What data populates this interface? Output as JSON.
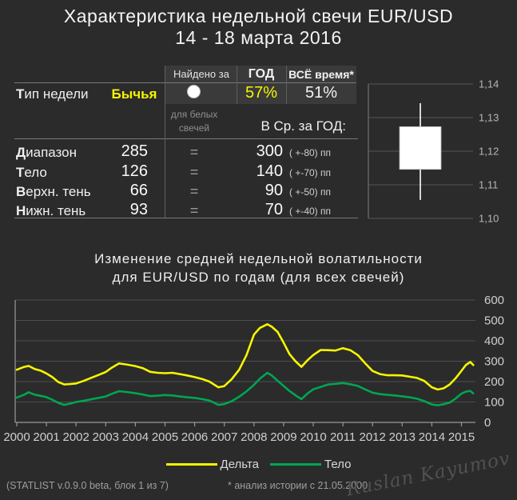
{
  "header": {
    "title_line1": "Характеристика недельной свечи EUR/USD",
    "title_line2": "14 - 18 марта 2016"
  },
  "stats_table": {
    "col_headers": {
      "found_for": "Найдено за",
      "year": "ГОД",
      "all_time": "ВСЁ время*"
    },
    "week_type": {
      "label_initial": "Т",
      "label_rest": "ип недели",
      "value": "Бычья",
      "year_pct": "57%",
      "all_time_pct": "51%"
    },
    "note": {
      "line1": "для белых",
      "line2": "свечей"
    },
    "avg_header": "В Ср. за ГОД:",
    "eq": "=",
    "rows": [
      {
        "label_initial": "Д",
        "label_rest": "иапазон",
        "value": "285",
        "avg": "300",
        "tolerance": "( +-80) пп"
      },
      {
        "label_initial": "Т",
        "label_rest": "ело",
        "value": "126",
        "avg": "140",
        "tolerance": "( +-70) пп"
      },
      {
        "label_initial": "В",
        "label_rest": "ерхн. тень",
        "value": "66",
        "avg": "90",
        "tolerance": "( +-50) пп"
      },
      {
        "label_initial": "Н",
        "label_rest": "ижн. тень",
        "value": "93",
        "avg": "70",
        "tolerance": "( +-40) пп"
      }
    ]
  },
  "colors": {
    "background": "#2b2b2b",
    "yellow": "#f7f500",
    "green": "#00a651",
    "gridline": "#4d4d4d",
    "axis": "#999999",
    "candle_fill": "#ffffff"
  },
  "chart_data": [
    {
      "type": "candlestick",
      "description": "weekly EUR/USD candle 14-18 March 2016",
      "y_ticks": [
        "1,14",
        "1,13",
        "1,12",
        "1,11",
        "1,10"
      ],
      "y_range": [
        1.1,
        1.14
      ],
      "grid": true,
      "candle": {
        "open": 1.1146,
        "close": 1.1273,
        "high": 1.1343,
        "low": 1.1055,
        "direction": "bullish"
      }
    },
    {
      "type": "line",
      "title_line1": "Изменение средней недельной волатильности",
      "title_line2": "для EUR/USD по годам (для всех свечей)",
      "x_ticks": [
        2000,
        2001,
        2002,
        2003,
        2004,
        2005,
        2006,
        2007,
        2008,
        2009,
        2010,
        2011,
        2012,
        2013,
        2014,
        2015
      ],
      "y_ticks": [
        0,
        100,
        200,
        300,
        400,
        500,
        600
      ],
      "ylim": [
        0,
        600
      ],
      "grid": true,
      "legend_position": "bottom",
      "x": [
        2000,
        2000.25,
        2000.4,
        2000.6,
        2000.8,
        2001,
        2001.2,
        2001.4,
        2001.6,
        2001.8,
        2002,
        2002.25,
        2002.5,
        2002.75,
        2003,
        2003.2,
        2003.45,
        2003.7,
        2004,
        2004.25,
        2004.5,
        2004.75,
        2005,
        2005.25,
        2005.5,
        2005.75,
        2006,
        2006.25,
        2006.5,
        2006.8,
        2007,
        2007.25,
        2007.5,
        2007.75,
        2008,
        2008.2,
        2008.45,
        2008.6,
        2008.8,
        2009,
        2009.2,
        2009.4,
        2009.6,
        2009.8,
        2010,
        2010.25,
        2010.5,
        2010.75,
        2011,
        2011.25,
        2011.5,
        2011.75,
        2012,
        2012.25,
        2012.5,
        2012.75,
        2013,
        2013.25,
        2013.5,
        2013.75,
        2014,
        2014.2,
        2014.4,
        2014.6,
        2014.8,
        2015,
        2015.15,
        2015.3,
        2015.4
      ],
      "series": [
        {
          "name": "Дельта",
          "color": "#f7f500",
          "values": [
            258,
            272,
            277,
            262,
            254,
            240,
            222,
            198,
            186,
            188,
            191,
            203,
            218,
            232,
            247,
            268,
            289,
            284,
            276,
            266,
            248,
            243,
            241,
            243,
            237,
            230,
            222,
            213,
            200,
            172,
            178,
            212,
            258,
            330,
            430,
            463,
            481,
            469,
            443,
            391,
            335,
            300,
            272,
            304,
            330,
            355,
            354,
            352,
            364,
            354,
            330,
            290,
            252,
            237,
            231,
            231,
            230,
            224,
            218,
            203,
            172,
            161,
            167,
            186,
            216,
            253,
            282,
            296,
            281
          ]
        },
        {
          "name": "Тело",
          "color": "#00a651",
          "values": [
            122,
            136,
            148,
            136,
            130,
            124,
            111,
            96,
            86,
            92,
            100,
            106,
            113,
            120,
            127,
            140,
            153,
            149,
            143,
            137,
            129,
            131,
            134,
            132,
            127,
            123,
            120,
            114,
            107,
            86,
            90,
            104,
            126,
            152,
            184,
            214,
            243,
            230,
            204,
            179,
            154,
            133,
            114,
            141,
            162,
            174,
            186,
            189,
            193,
            187,
            179,
            162,
            146,
            139,
            135,
            132,
            128,
            123,
            116,
            104,
            88,
            84,
            89,
            97,
            117,
            141,
            151,
            154,
            142
          ]
        }
      ]
    }
  ],
  "footer": {
    "app_info": "(STATLIST v.0.9.0 beta, блок 1 из 7)",
    "history_note": "* анализ истории с  21.05.2000",
    "watermark": "Ruslan Kayumov"
  }
}
